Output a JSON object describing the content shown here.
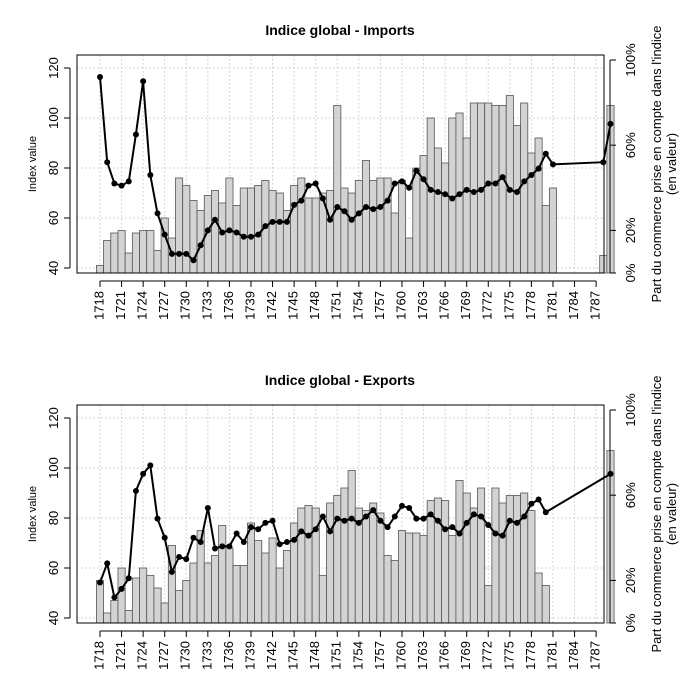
{
  "chart_data": [
    {
      "type": "bar",
      "title": "Indice global - Imports",
      "ylabel": "Index value",
      "y2label_line1": "Part du commerce prise en compte dans l'indice",
      "y2label_line2": "(en valeur)",
      "xlabel": "",
      "ylim": [
        40,
        120
      ],
      "y2lim": [
        0,
        100
      ],
      "yticks": [
        40,
        60,
        80,
        100,
        120
      ],
      "y2ticks": [
        "0%",
        "20%",
        "60%",
        "100%"
      ],
      "x": [
        1718,
        1719,
        1720,
        1721,
        1722,
        1723,
        1724,
        1725,
        1726,
        1727,
        1728,
        1729,
        1730,
        1731,
        1732,
        1733,
        1734,
        1735,
        1736,
        1737,
        1738,
        1739,
        1740,
        1741,
        1742,
        1743,
        1744,
        1745,
        1746,
        1747,
        1748,
        1749,
        1750,
        1751,
        1752,
        1753,
        1754,
        1755,
        1756,
        1757,
        1758,
        1759,
        1760,
        1761,
        1762,
        1763,
        1764,
        1765,
        1766,
        1767,
        1768,
        1769,
        1770,
        1771,
        1772,
        1773,
        1774,
        1775,
        1776,
        1777,
        1778,
        1779,
        1780,
        1781,
        1782,
        1783,
        1784,
        1785,
        1786,
        1787,
        1788,
        1789
      ],
      "xtick_labels": [
        "1718",
        "1721",
        "1724",
        "1727",
        "1730",
        "1733",
        "1736",
        "1739",
        "1742",
        "1745",
        "1748",
        "1751",
        "1754",
        "1757",
        "1760",
        "1763",
        "1766",
        "1769",
        "1772",
        "1775",
        "1778",
        "1781",
        "1784",
        "1787"
      ],
      "grid": true,
      "series": [
        {
          "kind": "bar",
          "axis": "left",
          "color": "#d3d3d3",
          "values": [
            41,
            51,
            54,
            55,
            46,
            54,
            55,
            55,
            47,
            60,
            52,
            76,
            73,
            67,
            63,
            69,
            71,
            66,
            76,
            65,
            72,
            72,
            73,
            75,
            71,
            70,
            63,
            73,
            76,
            68,
            68,
            70,
            71,
            105,
            72,
            70,
            75,
            83,
            75,
            76,
            76,
            62,
            75,
            52,
            80,
            85,
            100,
            88,
            82,
            100,
            102,
            92,
            106,
            106,
            106,
            105,
            105,
            109,
            97,
            106,
            86,
            92,
            65,
            72,
            null,
            null,
            null,
            null,
            null,
            null,
            45,
            105
          ]
        },
        {
          "kind": "line",
          "axis": "right",
          "color": "#000000",
          "values": [
            92,
            52,
            42,
            41,
            43,
            65,
            90,
            46,
            28,
            18,
            9,
            9,
            9,
            6,
            13,
            20,
            25,
            19,
            20,
            19,
            17,
            17,
            18,
            22,
            24,
            24,
            24,
            32,
            34,
            41,
            42,
            35,
            25,
            31,
            29,
            25,
            28,
            31,
            30,
            31,
            34,
            42,
            43,
            40,
            48,
            44,
            39,
            38,
            37,
            35,
            37,
            39,
            38,
            39,
            42,
            42,
            45,
            39,
            38,
            43,
            46,
            49,
            56,
            51,
            null,
            null,
            null,
            null,
            null,
            null,
            52,
            70
          ]
        }
      ]
    },
    {
      "type": "bar",
      "title": "Indice global - Exports",
      "ylabel": "Index value",
      "y2label_line1": "Part du commerce prise en compte dans l'indice",
      "y2label_line2": "(en valeur)",
      "xlabel": "",
      "ylim": [
        40,
        120
      ],
      "y2lim": [
        0,
        100
      ],
      "yticks": [
        40,
        60,
        80,
        100,
        120
      ],
      "y2ticks": [
        "0%",
        "20%",
        "60%",
        "100%"
      ],
      "x": [
        1718,
        1719,
        1720,
        1721,
        1722,
        1723,
        1724,
        1725,
        1726,
        1727,
        1728,
        1729,
        1730,
        1731,
        1732,
        1733,
        1734,
        1735,
        1736,
        1737,
        1738,
        1739,
        1740,
        1741,
        1742,
        1743,
        1744,
        1745,
        1746,
        1747,
        1748,
        1749,
        1750,
        1751,
        1752,
        1753,
        1754,
        1755,
        1756,
        1757,
        1758,
        1759,
        1760,
        1761,
        1762,
        1763,
        1764,
        1765,
        1766,
        1767,
        1768,
        1769,
        1770,
        1771,
        1772,
        1773,
        1774,
        1775,
        1776,
        1777,
        1778,
        1779,
        1780,
        1781,
        1782,
        1783,
        1784,
        1785,
        1786,
        1787,
        1788,
        1789
      ],
      "xtick_labels": [
        "1718",
        "1721",
        "1724",
        "1727",
        "1730",
        "1733",
        "1736",
        "1739",
        "1742",
        "1745",
        "1748",
        "1751",
        "1754",
        "1757",
        "1760",
        "1763",
        "1766",
        "1769",
        "1772",
        "1775",
        "1778",
        "1781",
        "1784",
        "1787"
      ],
      "grid": true,
      "series": [
        {
          "kind": "bar",
          "axis": "left",
          "color": "#d3d3d3",
          "values": [
            55,
            42,
            47,
            60,
            43,
            56,
            60,
            57,
            52,
            46,
            69,
            51,
            55,
            62,
            75,
            62,
            65,
            77,
            68,
            61,
            61,
            78,
            71,
            66,
            72,
            60,
            67,
            78,
            84,
            85,
            84,
            57,
            86,
            89,
            92,
            99,
            84,
            83,
            86,
            82,
            65,
            63,
            75,
            74,
            74,
            73,
            87,
            88,
            87,
            73,
            95,
            90,
            84,
            92,
            53,
            92,
            86,
            89,
            89,
            90,
            83,
            58,
            53,
            null,
            null,
            null,
            null,
            null,
            null,
            null,
            null,
            107
          ]
        },
        {
          "kind": "line",
          "axis": "right",
          "color": "#000000",
          "values": [
            19,
            28,
            12,
            16,
            21,
            62,
            70,
            74,
            49,
            40,
            24,
            31,
            30,
            40,
            38,
            54,
            35,
            36,
            36,
            42,
            38,
            45,
            44,
            47,
            48,
            37,
            38,
            39,
            43,
            41,
            44,
            50,
            43,
            49,
            48,
            49,
            47,
            50,
            53,
            48,
            45,
            50,
            55,
            54,
            49,
            49,
            51,
            48,
            44,
            45,
            42,
            47,
            51,
            50,
            46,
            42,
            41,
            48,
            47,
            50,
            56,
            58,
            52,
            null,
            null,
            null,
            null,
            null,
            null,
            null,
            null,
            70
          ]
        }
      ]
    }
  ]
}
